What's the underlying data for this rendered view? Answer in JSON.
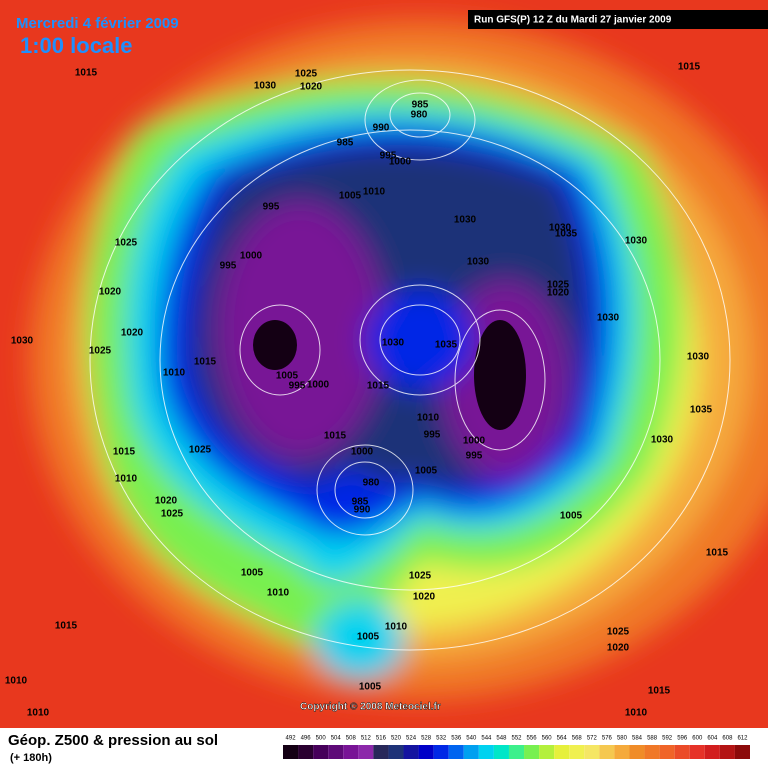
{
  "header": {
    "date": "Mercredi 4 février 2009",
    "time": "1:00 locale",
    "run": "Run GFS(P) 12 Z du Mardi 27 janvier 2009"
  },
  "copyright": "Copyright © 2008 Meteociel.fr",
  "footer": {
    "title": "Géop. Z500 & pression au sol",
    "subtitle": "(+ 180h)"
  },
  "legend": {
    "levels": [
      492,
      496,
      500,
      504,
      508,
      512,
      516,
      520,
      524,
      528,
      532,
      536,
      540,
      544,
      548,
      552,
      556,
      560,
      564,
      568,
      572,
      576,
      580,
      584,
      588,
      592,
      596,
      600,
      604,
      608,
      612
    ],
    "colors": [
      "#140014",
      "#2a0030",
      "#46005a",
      "#5e0a78",
      "#781496",
      "#8c28aa",
      "#28285a",
      "#1e3278",
      "#1414a0",
      "#0000c8",
      "#0028e6",
      "#0064f0",
      "#00a0f0",
      "#00d2f0",
      "#00e6c8",
      "#3cf08c",
      "#78f050",
      "#b4f03c",
      "#e6f03c",
      "#f0f050",
      "#f5e664",
      "#f5c850",
      "#f5aa3c",
      "#f08c28",
      "#f07828",
      "#f06428",
      "#eb4b28",
      "#e63228",
      "#d21e1e",
      "#b41414",
      "#8c0a0a"
    ]
  },
  "isobar_labels": [
    "1015",
    "1030",
    "1025",
    "1020",
    "985",
    "980",
    "990",
    "985",
    "995",
    "1000",
    "1005",
    "1010",
    "995",
    "1000",
    "995",
    "1025",
    "1020",
    "1020",
    "1030",
    "1025",
    "1015",
    "1010",
    "1005",
    "995",
    "1000",
    "1030",
    "1035",
    "1015",
    "1010",
    "995",
    "1000",
    "995",
    "1015",
    "1025",
    "1015",
    "1010",
    "1000",
    "980",
    "985",
    "990",
    "1020",
    "1025",
    "1005",
    "1030",
    "1030",
    "1030",
    "1035",
    "1030",
    "1025",
    "1020",
    "1030",
    "1030",
    "1035",
    "1030",
    "1005",
    "1015",
    "1015",
    "1005",
    "1010",
    "1025",
    "1020",
    "1010",
    "1005",
    "1015",
    "1010",
    "1005",
    "1015",
    "1025",
    "1020",
    "1010",
    "1010"
  ]
}
